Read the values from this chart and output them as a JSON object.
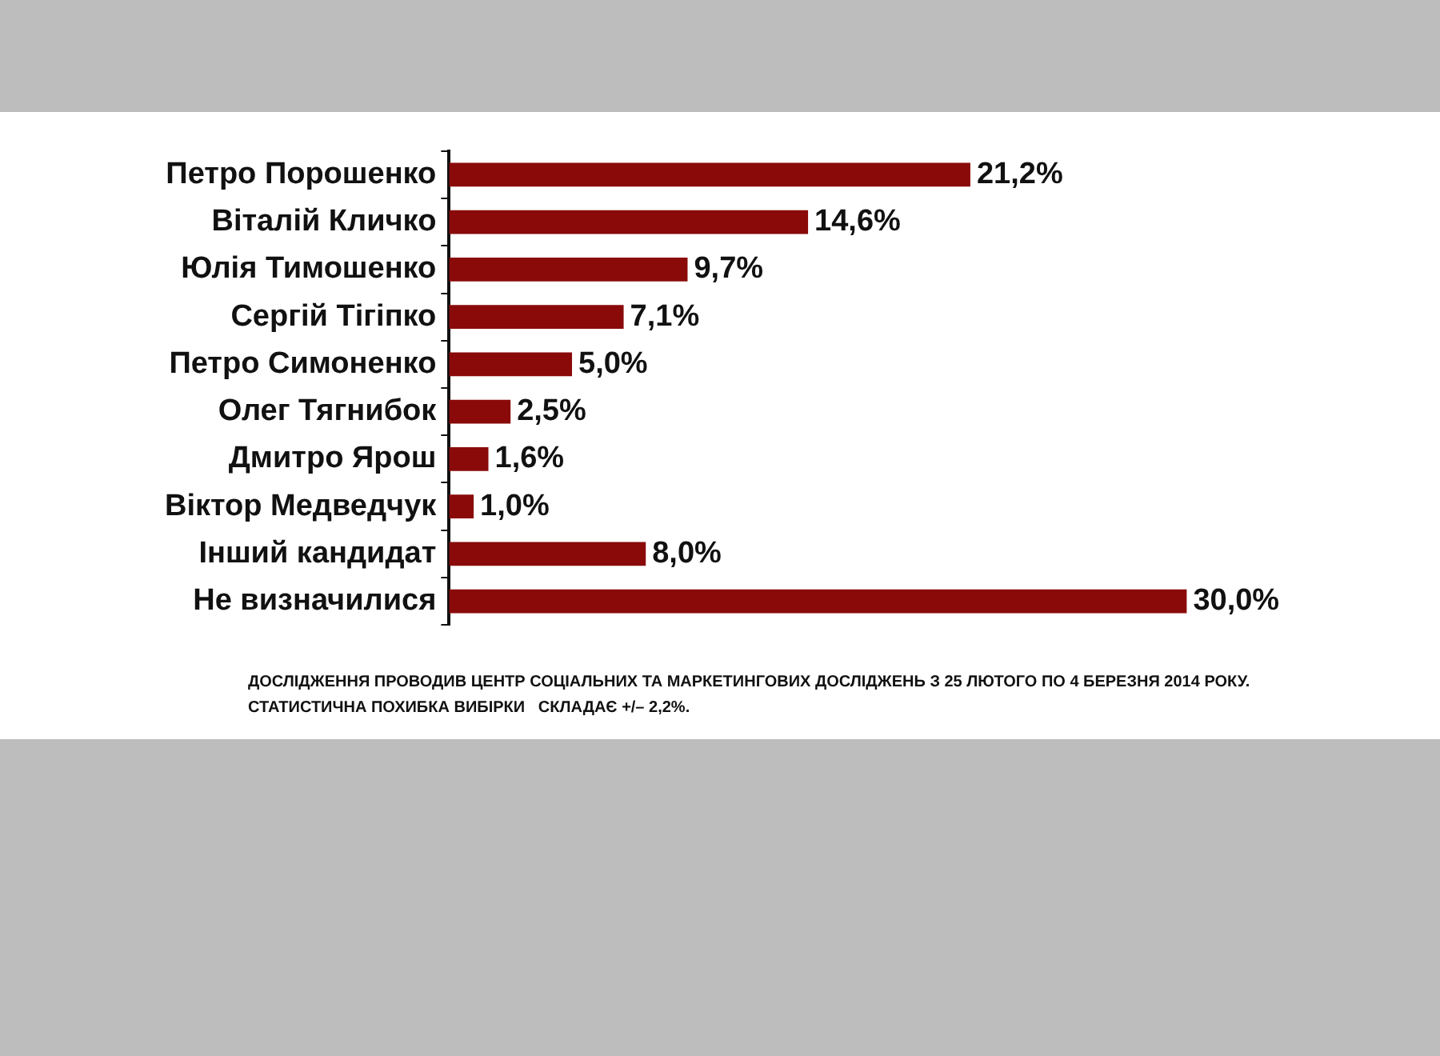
{
  "chart_data": {
    "type": "bar",
    "orientation": "horizontal",
    "categories": [
      "Петро Порошенко",
      "Віталій Кличко",
      "Юлія Тимошенко",
      "Сергій Тігіпко",
      "Петро Симоненко",
      "Олег Тягнибок",
      "Дмитро Ярош",
      "Віктор Медведчук",
      "Інший кандидат",
      "Не визначилися"
    ],
    "values": [
      21.2,
      14.6,
      9.7,
      7.1,
      5.0,
      2.5,
      1.6,
      1.0,
      8.0,
      30.0
    ],
    "value_labels": [
      "21,2%",
      "14,6%",
      "9,7%",
      "7,1%",
      "5,0%",
      "2,5%",
      "1,6%",
      "1,0%",
      "8,0%",
      "30,0%"
    ],
    "color": "#8a0a0a",
    "grid": false,
    "legend": false,
    "annotations": [
      "ДОСЛІДЖЕННЯ ПРОВОДИВ ЦЕНТР СОЦІАЛЬНИХ ТА МАРКЕТИНГОВИХ ДОСЛІДЖЕНЬ З 25 ЛЮТОГО ПО 4 БЕРЕЗНЯ 2014 РОКУ.",
      "СТАТИСТИЧНА ПОХИБКА ВИБІРКИ   СКЛАДАЄ +/– 2,2%."
    ]
  }
}
